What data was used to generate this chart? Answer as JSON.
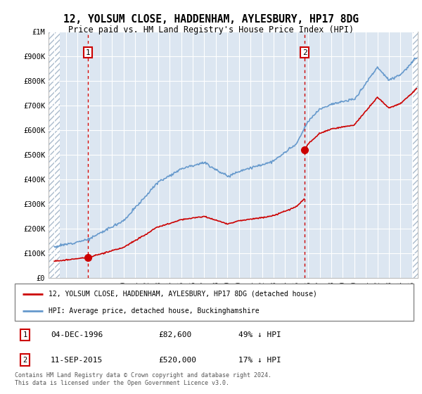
{
  "title_line1": "12, YOLSUM CLOSE, HADDENHAM, AYLESBURY, HP17 8DG",
  "title_line2": "Price paid vs. HM Land Registry's House Price Index (HPI)",
  "xlim_start": 1993.5,
  "xlim_end": 2025.5,
  "ylim_bottom": 0,
  "ylim_top": 1000000,
  "sale1_date": 1996.92,
  "sale1_price": 82600,
  "sale1_date_str": "04-DEC-1996",
  "sale1_price_str": "£82,600",
  "sale1_hpi_str": "49% ↓ HPI",
  "sale2_date": 2015.7,
  "sale2_price": 520000,
  "sale2_date_str": "11-SEP-2015",
  "sale2_price_str": "£520,000",
  "sale2_hpi_str": "17% ↓ HPI",
  "legend_label1": "12, YOLSUM CLOSE, HADDENHAM, AYLESBURY, HP17 8DG (detached house)",
  "legend_label2": "HPI: Average price, detached house, Buckinghamshire",
  "footer": "Contains HM Land Registry data © Crown copyright and database right 2024.\nThis data is licensed under the Open Government Licence v3.0.",
  "price_line_color": "#cc0000",
  "hpi_line_color": "#6699cc",
  "plot_bg_color": "#dce6f1",
  "grid_color": "#ffffff",
  "sale_marker_color": "#cc0000",
  "vline_color": "#cc0000",
  "label_box_color": "#cc0000",
  "hatch_left_end": 1994.5,
  "hatch_right_start": 2025.0
}
